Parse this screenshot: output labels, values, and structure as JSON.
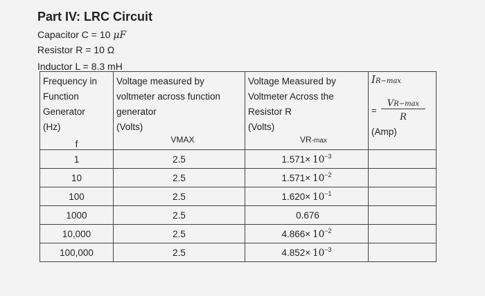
{
  "heading": {
    "title": "Part IV: LRC Circuit",
    "capacitor_label": "Capacitor C = 10",
    "capacitor_unit": "μF",
    "resistor_label": "Resistor R = 10",
    "resistor_unit": "Ω",
    "inductor_label": "Inductor L = 8.3 mH"
  },
  "table": {
    "headers": {
      "frequency": "Frequency in\nFunction\nGenerator\n(Hz)",
      "frequency_symbol": "f",
      "vmax": "Voltage measured by\nvoltmeter across function\ngenerator\n(Volts)",
      "vmax_symbol": "VMAX",
      "vr": "Voltage Measured by\nVoltmeter Across the\nResistor R\n(Volts)",
      "vr_symbol_main": "VR",
      "vr_symbol_sub": "-max",
      "ir_symbol_main": "I",
      "ir_symbol_sub": "R−max",
      "ir_eq": "=",
      "ir_num_main": "V",
      "ir_num_sub": "R−max",
      "ir_den": "R",
      "ir_unit": "(Amp)"
    },
    "rows": [
      {
        "f": "1",
        "vmax": "2.5",
        "vr_mant": "1.571×",
        "vr_base": "10",
        "vr_exp": "−3",
        "vr_plain": ""
      },
      {
        "f": "10",
        "vmax": "2.5",
        "vr_mant": "1.571×",
        "vr_base": "10",
        "vr_exp": "−2",
        "vr_plain": ""
      },
      {
        "f": "100",
        "vmax": "2.5",
        "vr_mant": "1.620×",
        "vr_base": "10",
        "vr_exp": "−1",
        "vr_plain": ""
      },
      {
        "f": "1000",
        "vmax": "2.5",
        "vr_mant": "",
        "vr_base": "",
        "vr_exp": "",
        "vr_plain": "0.676"
      },
      {
        "f": "10,000",
        "vmax": "2.5",
        "vr_mant": "4.866×",
        "vr_base": "10",
        "vr_exp": "−2",
        "vr_plain": ""
      },
      {
        "f": "100,000",
        "vmax": "2.5",
        "vr_mant": "4.852×",
        "vr_base": "10",
        "vr_exp": "−3",
        "vr_plain": ""
      }
    ]
  }
}
